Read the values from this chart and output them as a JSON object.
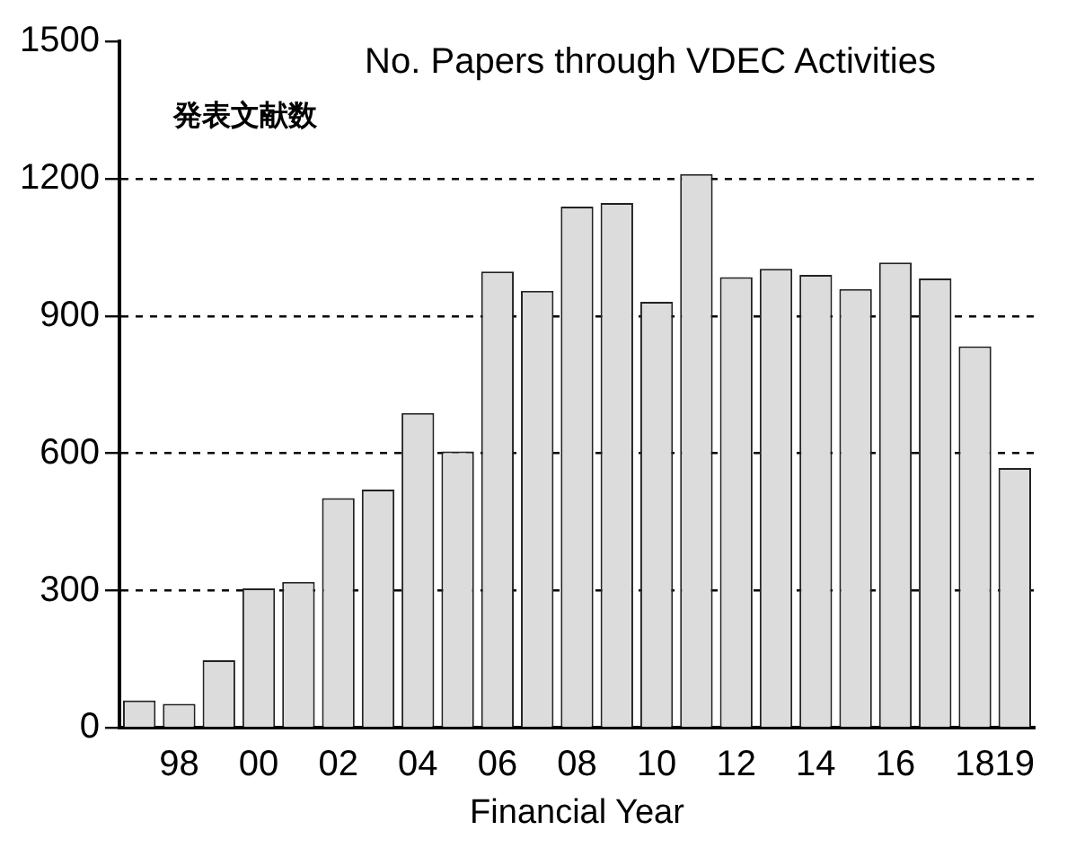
{
  "chart_data": {
    "type": "bar",
    "title": "No. Papers through VDEC Activities",
    "subtitle": "発表文献数",
    "xlabel": "Financial Year",
    "categories": [
      null,
      "98",
      null,
      "00",
      null,
      "02",
      null,
      "04",
      null,
      "06",
      null,
      "08",
      null,
      "10",
      null,
      "12",
      null,
      "14",
      null,
      "16",
      null,
      "18",
      "19"
    ],
    "values": [
      60,
      53,
      148,
      305,
      319,
      502,
      521,
      688,
      604,
      997,
      955,
      1139,
      1147,
      931,
      1210,
      985,
      1003,
      990,
      959,
      1017,
      982,
      834,
      568
    ],
    "color": "#dcdcdc",
    "ylim": [
      0,
      1500
    ],
    "yticks": [
      0,
      300,
      600,
      900,
      1200,
      1500
    ],
    "grid": "y",
    "legend": false
  }
}
